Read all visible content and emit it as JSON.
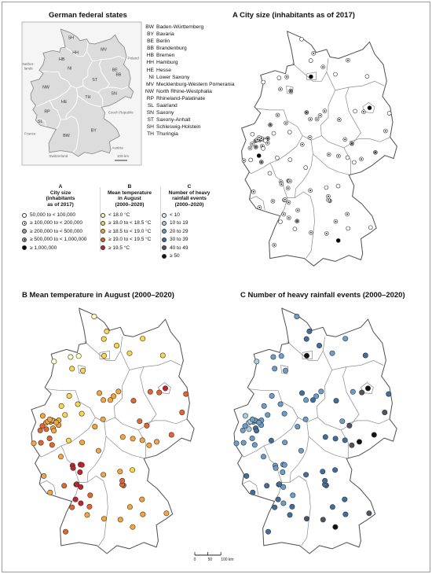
{
  "states_title": "German federal states",
  "panel_a_title": "A  City size (inhabitants as of 2017)",
  "panel_b_title": "B  Mean temperature in August (2000–2020)",
  "panel_c_title": "C  Number of heavy rainfall events (2000–2020)",
  "states": [
    {
      "code": "BW",
      "name": "Baden-Württemberg"
    },
    {
      "code": "BY",
      "name": "Bavaria"
    },
    {
      "code": "BE",
      "name": "Berlin"
    },
    {
      "code": "BB",
      "name": "Brandenburg"
    },
    {
      "code": "HB",
      "name": "Bremen"
    },
    {
      "code": "HH",
      "name": "Hamburg"
    },
    {
      "code": "HE",
      "name": "Hesse"
    },
    {
      "code": "NI",
      "name": "Lower Saxony"
    },
    {
      "code": "MV",
      "name": "Mecklenburg-Western Pomerania"
    },
    {
      "code": "NW",
      "name": "North Rhine-Westphalia"
    },
    {
      "code": "RP",
      "name": "Rhineland-Palatinate"
    },
    {
      "code": "SL",
      "name": "Saarland"
    },
    {
      "code": "SN",
      "name": "Saxony"
    },
    {
      "code": "ST",
      "name": "Saxony-Anhalt"
    },
    {
      "code": "SH",
      "name": "Schleswig-Holstein"
    },
    {
      "code": "TH",
      "name": "Thuringia"
    }
  ],
  "inset": {
    "state_labels": [
      "SH",
      "MV",
      "HH",
      "HB",
      "NI",
      "BE",
      "BB",
      "ST",
      "NW",
      "SN",
      "HE",
      "TH",
      "RP",
      "SL",
      "BW",
      "BY"
    ],
    "neighbors": [
      "Nether-",
      "lands",
      "Poland",
      "Czech Republic",
      "France",
      "Austria",
      "Switzerland"
    ],
    "scale_label": "100 km"
  },
  "legend_a": {
    "letter": "A",
    "title": "City size (inhabitants as of 2017)",
    "title_lines": [
      "City size",
      "(inhabitants",
      "as of 2017)"
    ],
    "items": [
      {
        "label": "50,000 to < 100,000",
        "color": "#ffffff",
        "dot": false
      },
      {
        "label": "≥ 100,000 to < 200,000",
        "color": "#ffffff",
        "dot": true
      },
      {
        "label": "≥ 200,000 to < 500,000",
        "color": "#9c9c9c",
        "dot": false
      },
      {
        "label": "≥ 500,000 to < 1,000,000",
        "color": "#9c9c9c",
        "dot": true
      },
      {
        "label": "≥ 1,000,000",
        "color": "#000000",
        "dot": false
      }
    ]
  },
  "legend_b": {
    "letter": "B",
    "title": "Mean temperature in August (2000–2020)",
    "title_lines": [
      "Mean temperature",
      "in August",
      "(2000–2020)"
    ],
    "items": [
      {
        "label": "< 18.0 °C",
        "color": "#ffffbf"
      },
      {
        "label": "≥ 18.0 to < 18.5 °C",
        "color": "#fdd54a"
      },
      {
        "label": "≥ 18.5 to < 19.0 °C",
        "color": "#f9a43b"
      },
      {
        "label": "≥ 19.0 to < 19.5 °C",
        "color": "#e8642a"
      },
      {
        "label": "≥ 19.5 °C",
        "color": "#c0232a"
      }
    ]
  },
  "legend_c": {
    "letter": "C",
    "title": "Number of heavy rainfall events (2000–2020)",
    "title_lines": [
      "Number of heavy",
      "rainfall events",
      "(2000–2020)"
    ],
    "items": [
      {
        "label": "< 10",
        "color": "#e6f0f8"
      },
      {
        "label": "10 to 19",
        "color": "#a9cbe3"
      },
      {
        "label": "20 to 29",
        "color": "#6a9fcc"
      },
      {
        "label": "30 to 39",
        "color": "#3f6e9f"
      },
      {
        "label": "40 to 49",
        "color": "#4d5561"
      },
      {
        "label": "≥ 50",
        "color": "#111111"
      }
    ]
  },
  "scale_bar": {
    "ticks": [
      "0",
      "50",
      "100 km"
    ],
    "km": [
      0,
      50,
      100
    ]
  },
  "cities": [
    {
      "lon": 10.14,
      "lat": 54.32,
      "size": 1,
      "temp": 1,
      "rain": 3
    },
    {
      "lon": 10.69,
      "lat": 53.87,
      "size": 1,
      "temp": 1,
      "rain": 3
    },
    {
      "lon": 9.44,
      "lat": 54.79,
      "size": 0,
      "temp": 0,
      "rain": 2
    },
    {
      "lon": 9.98,
      "lat": 54.08,
      "size": 0,
      "temp": 1,
      "rain": 3
    },
    {
      "lon": 9.99,
      "lat": 53.55,
      "size": 4,
      "temp": 1,
      "rain": 5
    },
    {
      "lon": 12.14,
      "lat": 54.09,
      "size": 1,
      "temp": 1,
      "rain": 2
    },
    {
      "lon": 11.41,
      "lat": 53.63,
      "size": 0,
      "temp": 1,
      "rain": 2
    },
    {
      "lon": 13.26,
      "lat": 53.56,
      "size": 0,
      "temp": 1,
      "rain": 3
    },
    {
      "lon": 8.81,
      "lat": 53.08,
      "size": 3,
      "temp": 1,
      "rain": 2
    },
    {
      "lon": 8.58,
      "lat": 53.54,
      "size": 1,
      "temp": 0,
      "rain": 2
    },
    {
      "lon": 8.21,
      "lat": 53.14,
      "size": 1,
      "temp": 1,
      "rain": 2
    },
    {
      "lon": 8.13,
      "lat": 53.51,
      "size": 0,
      "temp": 0,
      "rain": 2
    },
    {
      "lon": 7.21,
      "lat": 53.37,
      "size": 0,
      "temp": 0,
      "rain": 1
    },
    {
      "lon": 8.05,
      "lat": 52.28,
      "size": 1,
      "temp": 1,
      "rain": 2
    },
    {
      "lon": 9.73,
      "lat": 52.37,
      "size": 3,
      "temp": 2,
      "rain": 3
    },
    {
      "lon": 9.95,
      "lat": 52.15,
      "size": 1,
      "temp": 2,
      "rain": 2
    },
    {
      "lon": 10.52,
      "lat": 52.27,
      "size": 1,
      "temp": 2,
      "rain": 2
    },
    {
      "lon": 10.79,
      "lat": 52.42,
      "size": 1,
      "temp": 2,
      "rain": 2
    },
    {
      "lon": 10.34,
      "lat": 52.15,
      "size": 1,
      "temp": 2,
      "rain": 3
    },
    {
      "lon": 9.93,
      "lat": 51.54,
      "size": 1,
      "temp": 2,
      "rain": 2
    },
    {
      "lon": 11.63,
      "lat": 52.13,
      "size": 1,
      "temp": 3,
      "rain": 3
    },
    {
      "lon": 11.97,
      "lat": 51.48,
      "size": 1,
      "temp": 3,
      "rain": 2
    },
    {
      "lon": 12.56,
      "lat": 52.41,
      "size": 0,
      "temp": 3,
      "rain": 2
    },
    {
      "lon": 13.06,
      "lat": 52.39,
      "size": 1,
      "temp": 3,
      "rain": 4
    },
    {
      "lon": 13.4,
      "lat": 52.52,
      "size": 4,
      "temp": 4,
      "rain": 5
    },
    {
      "lon": 14.33,
      "lat": 51.76,
      "size": 1,
      "temp": 3,
      "rain": 4
    },
    {
      "lon": 14.55,
      "lat": 52.34,
      "size": 0,
      "temp": 3,
      "rain": 3
    },
    {
      "lon": 12.37,
      "lat": 51.34,
      "size": 3,
      "temp": 3,
      "rain": 4
    },
    {
      "lon": 13.74,
      "lat": 51.05,
      "size": 3,
      "temp": 3,
      "rain": 5
    },
    {
      "lon": 12.92,
      "lat": 50.83,
      "size": 1,
      "temp": 2,
      "rain": 5
    },
    {
      "lon": 12.5,
      "lat": 50.72,
      "size": 0,
      "temp": 2,
      "rain": 4
    },
    {
      "lon": 12.12,
      "lat": 50.88,
      "size": 0,
      "temp": 2,
      "rain": 3
    },
    {
      "lon": 11.03,
      "lat": 50.98,
      "size": 1,
      "temp": 2,
      "rain": 3
    },
    {
      "lon": 11.59,
      "lat": 50.93,
      "size": 1,
      "temp": 2,
      "rain": 3
    },
    {
      "lon": 8.68,
      "lat": 50.11,
      "size": 3,
      "temp": 4,
      "rain": 2
    },
    {
      "lon": 8.24,
      "lat": 50.08,
      "size": 1,
      "temp": 4,
      "rain": 2
    },
    {
      "lon": 8.65,
      "lat": 49.87,
      "size": 1,
      "temp": 4,
      "rain": 2
    },
    {
      "lon": 8.76,
      "lat": 50.1,
      "size": 1,
      "temp": 4,
      "rain": 2
    },
    {
      "lon": 8.77,
      "lat": 50.81,
      "size": 0,
      "temp": 2,
      "rain": 2
    },
    {
      "lon": 9.48,
      "lat": 51.31,
      "size": 1,
      "temp": 2,
      "rain": 2
    },
    {
      "lon": 9.68,
      "lat": 50.55,
      "size": 0,
      "temp": 2,
      "rain": 2
    },
    {
      "lon": 8.27,
      "lat": 50.0,
      "size": 1,
      "temp": 4,
      "rain": 2
    },
    {
      "lon": 7.59,
      "lat": 50.36,
      "size": 0,
      "temp": 2,
      "rain": 2
    },
    {
      "lon": 6.64,
      "lat": 49.75,
      "size": 1,
      "temp": 2,
      "rain": 3
    },
    {
      "lon": 7.77,
      "lat": 49.44,
      "size": 1,
      "temp": 3,
      "rain": 3
    },
    {
      "lon": 8.44,
      "lat": 49.48,
      "size": 1,
      "temp": 4,
      "rain": 3
    },
    {
      "lon": 8.47,
      "lat": 49.49,
      "size": 1,
      "temp": 4,
      "rain": 3
    },
    {
      "lon": 8.69,
      "lat": 49.4,
      "size": 1,
      "temp": 4,
      "rain": 2
    },
    {
      "lon": 6.99,
      "lat": 49.23,
      "size": 1,
      "temp": 2,
      "rain": 3
    },
    {
      "lon": 8.4,
      "lat": 49.01,
      "size": 1,
      "temp": 4,
      "rain": 3
    },
    {
      "lon": 8.7,
      "lat": 48.89,
      "size": 1,
      "temp": 4,
      "rain": 2
    },
    {
      "lon": 9.18,
      "lat": 48.78,
      "size": 3,
      "temp": 3,
      "rain": 3
    },
    {
      "lon": 9.22,
      "lat": 49.14,
      "size": 1,
      "temp": 3,
      "rain": 2
    },
    {
      "lon": 7.85,
      "lat": 47.99,
      "size": 1,
      "temp": 3,
      "rain": 3
    },
    {
      "lon": 9.99,
      "lat": 48.4,
      "size": 1,
      "temp": 2,
      "rain": 4
    },
    {
      "lon": 9.05,
      "lat": 48.52,
      "size": 0,
      "temp": 2,
      "rain": 3
    },
    {
      "lon": 8.21,
      "lat": 48.76,
      "size": 0,
      "temp": 3,
      "rain": 3
    },
    {
      "lon": 9.95,
      "lat": 49.79,
      "size": 1,
      "temp": 2,
      "rain": 3
    },
    {
      "lon": 11.08,
      "lat": 49.45,
      "size": 3,
      "temp": 3,
      "rain": 3
    },
    {
      "lon": 11.0,
      "lat": 49.48,
      "size": 1,
      "temp": 3,
      "rain": 3
    },
    {
      "lon": 11.0,
      "lat": 49.6,
      "size": 1,
      "temp": 3,
      "rain": 3
    },
    {
      "lon": 12.1,
      "lat": 49.01,
      "size": 1,
      "temp": 2,
      "rain": 3
    },
    {
      "lon": 11.43,
      "lat": 48.77,
      "size": 1,
      "temp": 2,
      "rain": 3
    },
    {
      "lon": 10.9,
      "lat": 48.37,
      "size": 1,
      "temp": 2,
      "rain": 4
    },
    {
      "lon": 11.58,
      "lat": 48.14,
      "size": 4,
      "temp": 2,
      "rain": 5
    },
    {
      "lon": 13.46,
      "lat": 48.57,
      "size": 0,
      "temp": 2,
      "rain": 4
    },
    {
      "lon": 12.15,
      "lat": 48.54,
      "size": 0,
      "temp": 2,
      "rain": 3
    },
    {
      "lon": 11.57,
      "lat": 49.94,
      "size": 0,
      "temp": 1,
      "rain": 3
    },
    {
      "lon": 10.88,
      "lat": 49.89,
      "size": 0,
      "temp": 2,
      "rain": 3
    },
    {
      "lon": 6.96,
      "lat": 50.94,
      "size": 4,
      "temp": 3,
      "rain": 2
    },
    {
      "lon": 6.78,
      "lat": 51.23,
      "size": 3,
      "temp": 3,
      "rain": 1
    },
    {
      "lon": 7.01,
      "lat": 51.46,
      "size": 3,
      "temp": 2,
      "rain": 2
    },
    {
      "lon": 7.47,
      "lat": 51.51,
      "size": 3,
      "temp": 2,
      "rain": 2
    },
    {
      "lon": 7.62,
      "lat": 51.96,
      "size": 3,
      "temp": 1,
      "rain": 2
    },
    {
      "lon": 6.76,
      "lat": 51.43,
      "size": 3,
      "temp": 2,
      "rain": 1
    },
    {
      "lon": 7.1,
      "lat": 50.73,
      "size": 3,
      "temp": 3,
      "rain": 2
    },
    {
      "lon": 7.22,
      "lat": 51.48,
      "size": 1,
      "temp": 2,
      "rain": 2
    },
    {
      "lon": 7.15,
      "lat": 51.26,
      "size": 1,
      "temp": 2,
      "rain": 3
    },
    {
      "lon": 8.53,
      "lat": 52.02,
      "size": 1,
      "temp": 1,
      "rain": 2
    },
    {
      "lon": 6.08,
      "lat": 50.78,
      "size": 1,
      "temp": 2,
      "rain": 2
    },
    {
      "lon": 6.44,
      "lat": 51.19,
      "size": 1,
      "temp": 3,
      "rain": 2
    },
    {
      "lon": 6.56,
      "lat": 51.33,
      "size": 1,
      "temp": 3,
      "rain": 2
    },
    {
      "lon": 7.1,
      "lat": 51.51,
      "size": 1,
      "temp": 2,
      "rain": 2
    },
    {
      "lon": 7.46,
      "lat": 51.36,
      "size": 1,
      "temp": 2,
      "rain": 2
    },
    {
      "lon": 6.86,
      "lat": 51.47,
      "size": 1,
      "temp": 2,
      "rain": 1
    },
    {
      "lon": 7.2,
      "lat": 51.18,
      "size": 0,
      "temp": 2,
      "rain": 3
    },
    {
      "lon": 8.02,
      "lat": 50.87,
      "size": 0,
      "temp": 1,
      "rain": 3
    },
    {
      "lon": 8.75,
      "lat": 51.72,
      "size": 0,
      "temp": 1,
      "rain": 2
    },
    {
      "lon": 7.82,
      "lat": 51.68,
      "size": 0,
      "temp": 1,
      "rain": 2
    },
    {
      "lon": 6.48,
      "lat": 50.8,
      "size": 0,
      "temp": 3,
      "rain": 2
    },
    {
      "lon": 6.97,
      "lat": 51.54,
      "size": 1,
      "temp": 2,
      "rain": 2
    },
    {
      "lon": 7.33,
      "lat": 51.44,
      "size": 0,
      "temp": 2,
      "rain": 2
    },
    {
      "lon": 6.58,
      "lat": 51.65,
      "size": 0,
      "temp": 2,
      "rain": 1
    }
  ]
}
